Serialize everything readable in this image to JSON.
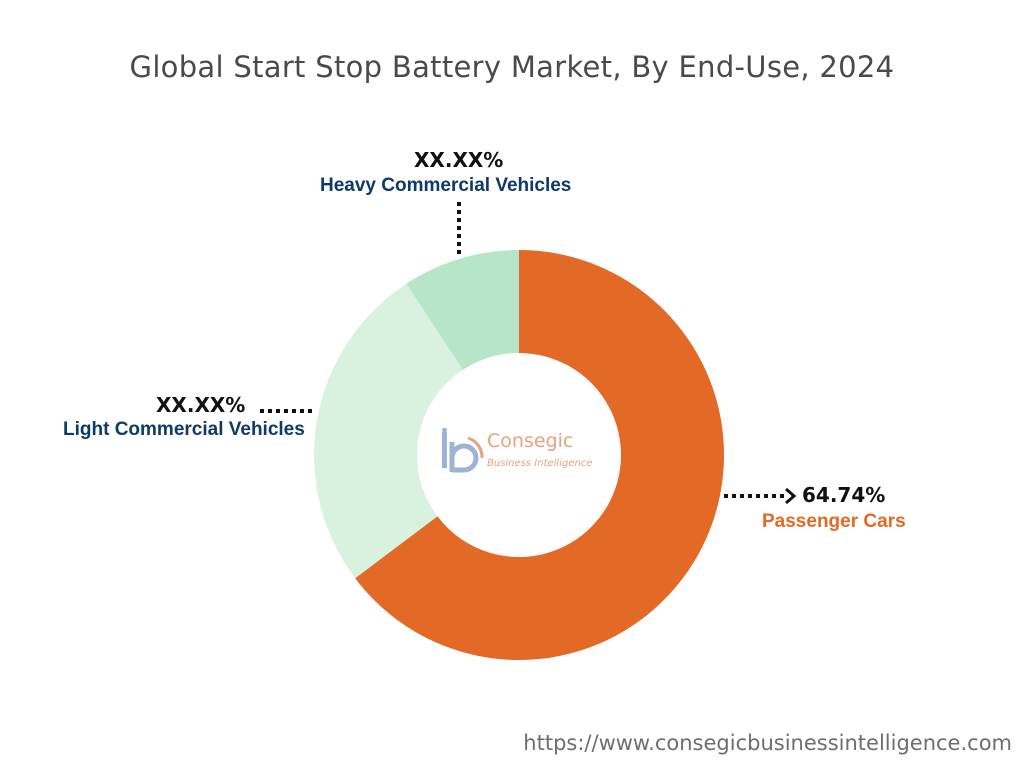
{
  "title": "Global Start Stop Battery Market, By End-Use, 2024",
  "source_url": "https://www.consegicbusinessintelligence.com",
  "logo": {
    "name": "Consegic",
    "tagline": "Business Intelligence"
  },
  "chart_data": {
    "type": "pie",
    "variant": "donut",
    "title": "Global Start Stop Battery Market, By End-Use, 2024",
    "slices": [
      {
        "label": "Passenger Cars",
        "value_label": "64.74%",
        "value": 64.74,
        "color": "#e36a26",
        "label_color": "#e36a26"
      },
      {
        "label": "Light Commercial Vehicles",
        "value_label": "XX.XX%",
        "value": 26.0,
        "color": "#d9f2df",
        "label_color": "#0d3b66"
      },
      {
        "label": "Heavy Commercial Vehicles",
        "value_label": "XX.XX%",
        "value": 9.26,
        "color": "#b6e5c8",
        "label_color": "#0d3b66"
      }
    ]
  }
}
